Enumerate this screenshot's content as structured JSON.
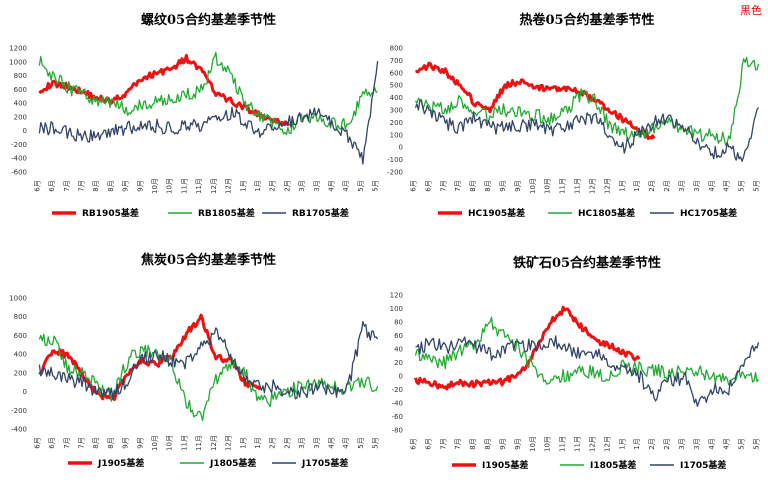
{
  "corner_tag": "黑色",
  "colors": {
    "s1905": "#ee1111",
    "s1805": "#22aa33",
    "s1705": "#334466"
  },
  "chart_data": [
    {
      "type": "line",
      "title": "螺纹05合约基差季节性",
      "ylim": [
        -600,
        1200
      ],
      "yticks": [
        -600,
        -400,
        -200,
        0,
        200,
        400,
        600,
        800,
        1000,
        1200
      ],
      "month_labels": [
        "6月",
        "6月",
        "7月",
        "7月",
        "8月",
        "8月",
        "9月",
        "9月",
        "10月",
        "10月",
        "11月",
        "11月",
        "12月",
        "12月",
        "1月",
        "1月",
        "2月",
        "2月",
        "3月",
        "3月",
        "4月",
        "4月",
        "5月",
        "5月"
      ],
      "series": [
        {
          "name": "RB1905基差",
          "values": [
            590,
            680,
            640,
            560,
            470,
            430,
            560,
            760,
            840,
            900,
            1050,
            880,
            540,
            430,
            330,
            220,
            130,
            100,
            null,
            null,
            null,
            null,
            null,
            null
          ]
        },
        {
          "name": "RB1805基差",
          "values": [
            1000,
            780,
            620,
            520,
            440,
            370,
            320,
            390,
            430,
            470,
            520,
            590,
            1050,
            820,
            380,
            230,
            80,
            30,
            180,
            160,
            110,
            80,
            530,
            560
          ]
        },
        {
          "name": "RB1705基差",
          "values": [
            40,
            30,
            -40,
            -80,
            -60,
            -20,
            40,
            60,
            70,
            20,
            90,
            40,
            180,
            260,
            140,
            -20,
            40,
            130,
            220,
            280,
            120,
            -80,
            -420,
            1010
          ]
        }
      ]
    },
    {
      "type": "line",
      "title": "热卷05合约基差季节性",
      "ylim": [
        -200,
        800
      ],
      "yticks": [
        -200,
        -100,
        0,
        100,
        200,
        300,
        400,
        500,
        600,
        700,
        800
      ],
      "month_labels": [
        "6月",
        "6月",
        "7月",
        "7月",
        "8月",
        "8月",
        "9月",
        "9月",
        "10月",
        "10月",
        "11月",
        "11月",
        "12月",
        "12月",
        "1月",
        "1月",
        "2月",
        "2月",
        "3月",
        "3月",
        "4月",
        "4月",
        "5月",
        "5月"
      ],
      "series": [
        {
          "name": "HC1905基差",
          "values": [
            620,
            660,
            610,
            500,
            350,
            300,
            500,
            530,
            480,
            470,
            480,
            450,
            380,
            300,
            220,
            130,
            70,
            null,
            null,
            null,
            null,
            null,
            null,
            null
          ]
        },
        {
          "name": "HC1805基差",
          "values": [
            380,
            320,
            300,
            380,
            260,
            260,
            300,
            270,
            260,
            220,
            280,
            420,
            400,
            180,
            120,
            100,
            160,
            190,
            140,
            100,
            90,
            60,
            670,
            670
          ]
        },
        {
          "name": "HC1705基差",
          "values": [
            350,
            280,
            200,
            150,
            240,
            160,
            160,
            170,
            190,
            130,
            160,
            220,
            240,
            100,
            0,
            120,
            200,
            230,
            160,
            20,
            -50,
            -10,
            -110,
            320
          ]
        }
      ]
    },
    {
      "type": "line",
      "title": "焦炭05合约基差季节性",
      "ylim": [
        -400,
        1000
      ],
      "yticks": [
        -400,
        -200,
        0,
        200,
        400,
        600,
        800,
        1000
      ],
      "month_labels": [
        "6月",
        "6月",
        "7月",
        "7月",
        "8月",
        "8月",
        "9月",
        "9月",
        "10月",
        "10月",
        "11月",
        "11月",
        "12月",
        "12月",
        "1月",
        "1月",
        "2月",
        "2月",
        "3月",
        "3月",
        "4月",
        "4月",
        "5月",
        "5月"
      ],
      "series": [
        {
          "name": "J1905基差",
          "values": [
            200,
            450,
            380,
            160,
            -30,
            -80,
            200,
            330,
            290,
            380,
            620,
            790,
            370,
            330,
            90,
            20,
            null,
            null,
            null,
            null,
            null,
            null,
            null,
            null
          ]
        },
        {
          "name": "J1805基差",
          "values": [
            590,
            520,
            240,
            180,
            50,
            -60,
            330,
            460,
            410,
            310,
            -110,
            -290,
            120,
            300,
            190,
            -120,
            -80,
            0,
            80,
            70,
            40,
            30,
            90,
            60
          ]
        },
        {
          "name": "J1705基差",
          "values": [
            230,
            170,
            130,
            100,
            -20,
            -20,
            120,
            370,
            390,
            320,
            300,
            470,
            640,
            380,
            150,
            60,
            60,
            0,
            -20,
            60,
            -10,
            60,
            690,
            560
          ]
        }
      ]
    },
    {
      "type": "line",
      "title": "铁矿石05合约基差季节性",
      "ylim": [
        -80,
        120
      ],
      "yticks": [
        -80,
        -60,
        -40,
        -20,
        0,
        20,
        40,
        60,
        80,
        100,
        120
      ],
      "month_labels": [
        "6月",
        "6月",
        "7月",
        "7月",
        "8月",
        "8月",
        "9月",
        "9月",
        "10月",
        "10月",
        "11月",
        "11月",
        "12月",
        "12月",
        "1月",
        "1月",
        "2月",
        "2月",
        "3月",
        "3月",
        "4月",
        "4月",
        "5月",
        "5月"
      ],
      "series": [
        {
          "name": "I1905基差",
          "values": [
            -5,
            -12,
            -15,
            -10,
            -12,
            -10,
            -8,
            5,
            35,
            80,
            100,
            75,
            55,
            45,
            35,
            25,
            null,
            null,
            null,
            null,
            null,
            null,
            null,
            null
          ]
        },
        {
          "name": "I1805基差",
          "values": [
            30,
            25,
            20,
            40,
            50,
            80,
            60,
            40,
            10,
            -5,
            0,
            10,
            5,
            -5,
            15,
            10,
            10,
            0,
            10,
            5,
            0,
            -5,
            0,
            -5
          ]
        },
        {
          "name": "I1705基差",
          "values": [
            35,
            50,
            40,
            55,
            45,
            30,
            40,
            50,
            40,
            55,
            45,
            30,
            35,
            20,
            10,
            0,
            -30,
            -10,
            0,
            -45,
            -20,
            -20,
            10,
            50
          ]
        }
      ]
    }
  ]
}
